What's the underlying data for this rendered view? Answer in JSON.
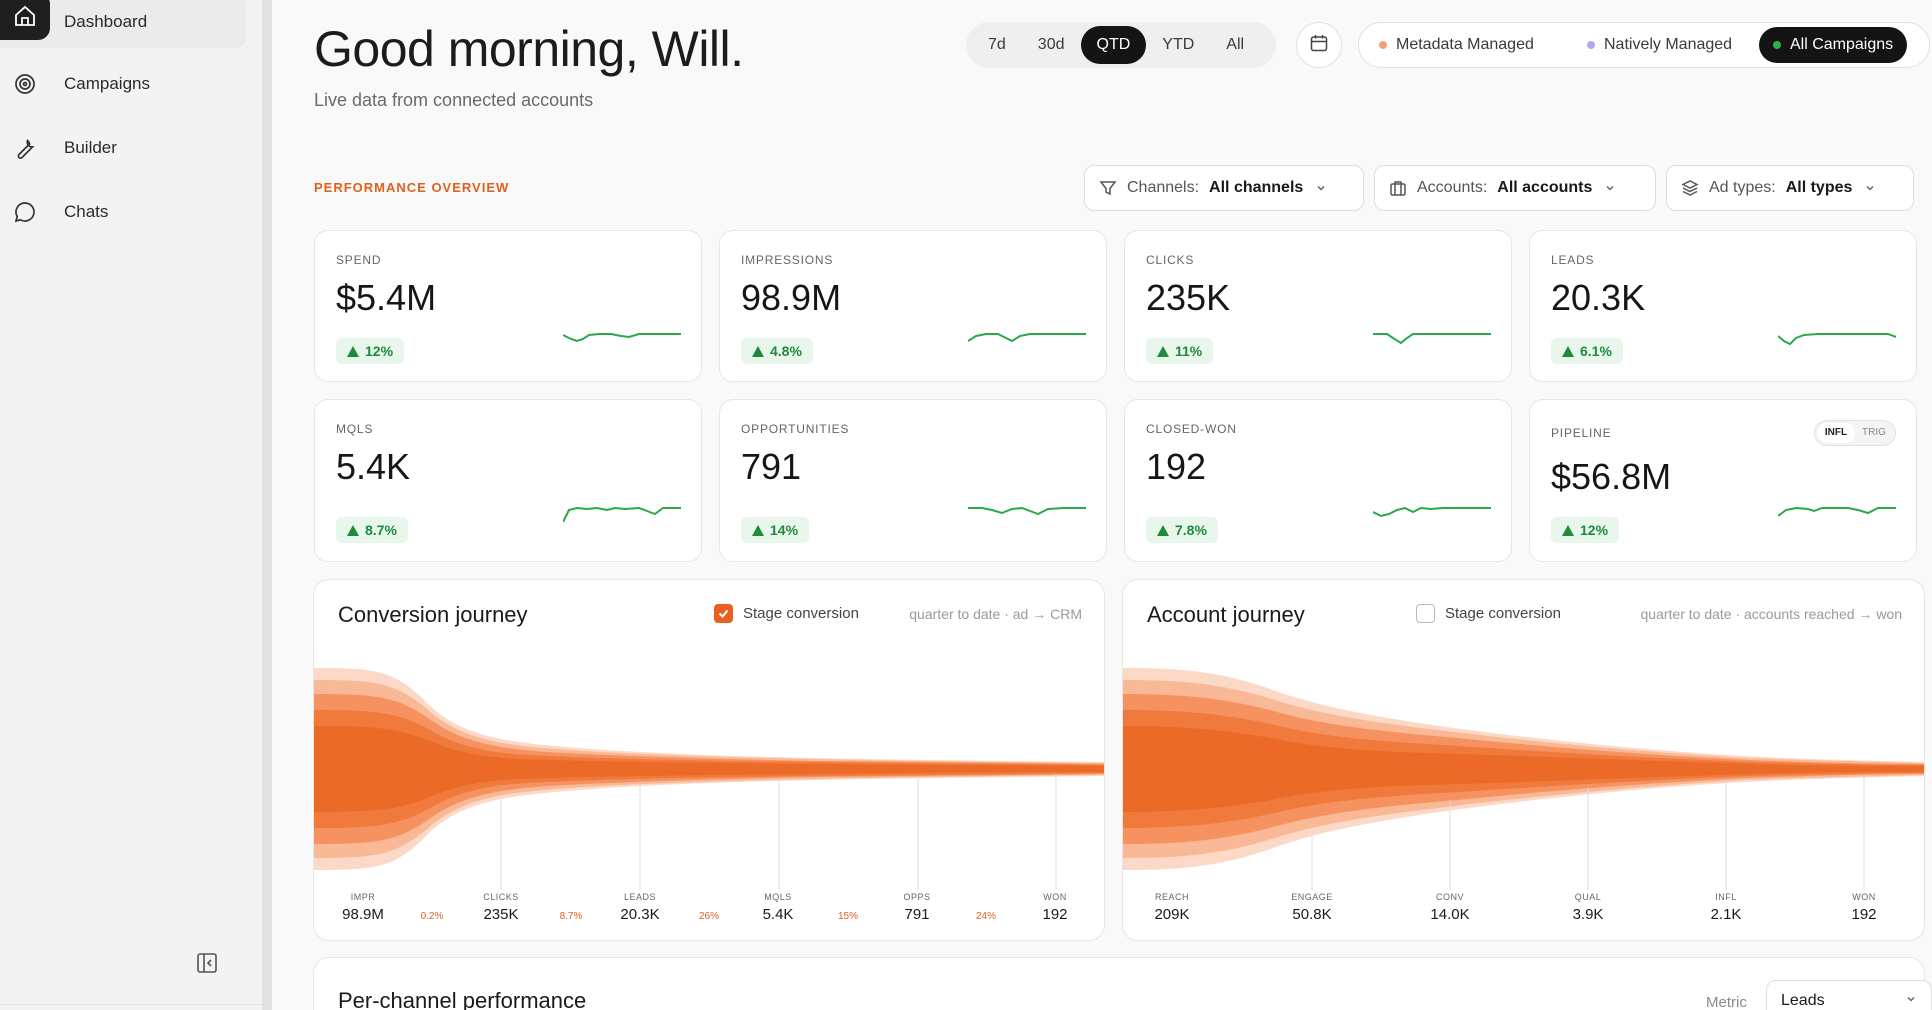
{
  "sidebar": {
    "items": [
      {
        "label": "Dashboard",
        "icon": "home-icon",
        "active": true
      },
      {
        "label": "Campaigns",
        "icon": "target-icon"
      },
      {
        "label": "Builder",
        "icon": "wrench-icon"
      },
      {
        "label": "Chats",
        "icon": "chat-bubble-icon"
      }
    ],
    "collapse_icon": "sidebar-collapse-icon"
  },
  "header": {
    "greeting": "Good morning, Will.",
    "subtitle": "Live data from connected accounts",
    "ranges": [
      "7d",
      "30d",
      "QTD",
      "YTD",
      "All"
    ],
    "active_range": "QTD",
    "calendar_icon": "calendar-icon",
    "managed": [
      {
        "label": "Metadata Managed",
        "dot": "#f0a080"
      },
      {
        "label": "Natively Managed",
        "dot": "#b3a8e8"
      },
      {
        "label": "All Campaigns",
        "dot": "#2bb24c",
        "active": true
      }
    ]
  },
  "overview": {
    "section_label": "PERFORMANCE OVERVIEW",
    "filters": [
      {
        "key": "Channels:",
        "value": "All channels",
        "icon": "filter-icon"
      },
      {
        "key": "Accounts:",
        "value": "All accounts",
        "icon": "building-icon"
      },
      {
        "key": "Ad types:",
        "value": "All types",
        "icon": "layers-icon"
      }
    ]
  },
  "kpis": [
    {
      "label": "SPEND",
      "value": "$5.4M",
      "delta": "12%"
    },
    {
      "label": "IMPRESSIONS",
      "value": "98.9M",
      "delta": "4.8%"
    },
    {
      "label": "CLICKS",
      "value": "235K",
      "delta": "11%"
    },
    {
      "label": "LEADS",
      "value": "20.3K",
      "delta": "6.1%"
    },
    {
      "label": "MQLS",
      "value": "5.4K",
      "delta": "8.7%"
    },
    {
      "label": "OPPORTUNITIES",
      "value": "791",
      "delta": "14%"
    },
    {
      "label": "CLOSED-WON",
      "value": "192",
      "delta": "7.8%"
    },
    {
      "label": "PIPELINE",
      "value": "$56.8M",
      "delta": "12%",
      "toggle": [
        "INFL",
        "TRIG"
      ]
    }
  ],
  "conversion": {
    "title": "Conversion journey",
    "checkbox_label": "Stage conversion",
    "checked": true,
    "subtitle": "quarter to date · ad → CRM",
    "stages": [
      {
        "name": "IMPR",
        "value": "98.9M"
      },
      {
        "name": "CLICKS",
        "value": "235K"
      },
      {
        "name": "LEADS",
        "value": "20.3K"
      },
      {
        "name": "MQLS",
        "value": "5.4K"
      },
      {
        "name": "OPPS",
        "value": "791"
      },
      {
        "name": "WON",
        "value": "192"
      }
    ],
    "rates": [
      "0.2%",
      "8.7%",
      "26%",
      "15%",
      "24%"
    ]
  },
  "account": {
    "title": "Account journey",
    "checkbox_label": "Stage conversion",
    "checked": false,
    "subtitle": "quarter to date · accounts reached → won",
    "stages": [
      {
        "name": "REACH",
        "value": "209K"
      },
      {
        "name": "ENGAGE",
        "value": "50.8K"
      },
      {
        "name": "CONV",
        "value": "14.0K"
      },
      {
        "name": "QUAL",
        "value": "3.9K"
      },
      {
        "name": "INFL",
        "value": "2.1K"
      },
      {
        "name": "WON",
        "value": "192"
      }
    ]
  },
  "per_channel": {
    "title": "Per-channel performance",
    "metric_label": "Metric",
    "metric_value": "Leads"
  },
  "colors": {
    "accent": "#e8621f",
    "positive": "#1f8a3c",
    "dark": "#141414"
  }
}
